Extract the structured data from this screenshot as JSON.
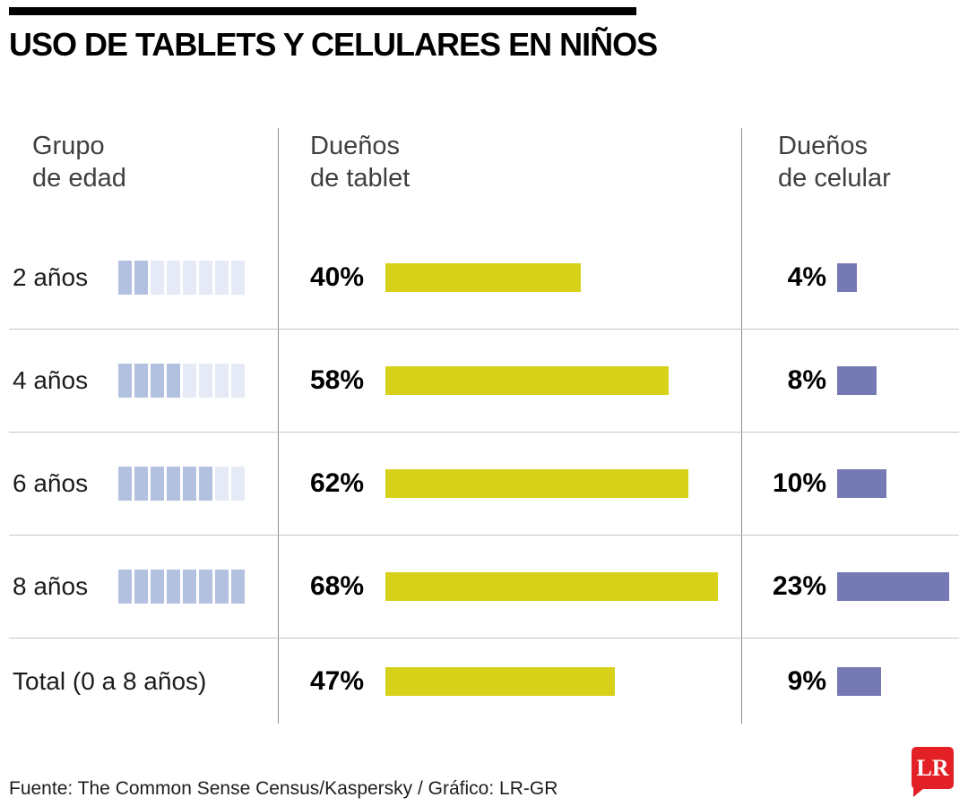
{
  "title": "USO DE TABLETS Y CELULARES EN NIÑOS",
  "columns": {
    "age": "Grupo\nde edad",
    "tablet": "Dueños\nde tablet",
    "phone": "Dueños\nde celular"
  },
  "rows": [
    {
      "label": "2 años",
      "squares": 2,
      "tablet_label": "40%",
      "tablet_value": 40,
      "phone_label": "4%",
      "phone_value": 4
    },
    {
      "label": "4 años",
      "squares": 4,
      "tablet_label": "58%",
      "tablet_value": 58,
      "phone_label": "8%",
      "phone_value": 8
    },
    {
      "label": "6 años",
      "squares": 6,
      "tablet_label": "62%",
      "tablet_value": 62,
      "phone_label": "10%",
      "phone_value": 10
    },
    {
      "label": "8 años",
      "squares": 8,
      "tablet_label": "68%",
      "tablet_value": 68,
      "phone_label": "23%",
      "phone_value": 23
    },
    {
      "label": "Total (0 a 8 años)",
      "tablet_label": "47%",
      "tablet_value": 47,
      "phone_label": "9%",
      "phone_value": 9
    }
  ],
  "chart_data": {
    "type": "bar",
    "orientation": "horizontal",
    "title": "USO DE TABLETS Y CELULARES EN NIÑOS",
    "categories": [
      "2 años",
      "4 años",
      "6 años",
      "8 años",
      "Total (0 a 8 años)"
    ],
    "series": [
      {
        "name": "Dueños de tablet",
        "values": [
          40,
          58,
          62,
          68,
          47
        ],
        "unit": "%",
        "color": "#d7d219"
      },
      {
        "name": "Dueños de celular",
        "values": [
          4,
          8,
          10,
          23,
          9
        ],
        "unit": "%",
        "color": "#757ab4"
      }
    ],
    "value_labels": true,
    "xlim": [
      0,
      100
    ],
    "legend_position": "column-headers",
    "grid": false,
    "source": "Fuente: The Common Sense Census/Kaspersky / Gráfico: LR-GR"
  },
  "colors": {
    "tablet_bar": "#d7d219",
    "phone_bar": "#757ab4",
    "square_filled": "#b3c1e1",
    "square_empty": "#e5eaf6",
    "logo_red": "#e32026"
  },
  "footer": {
    "source": "Fuente: The Common Sense Census/Kaspersky / Gráfico: LR-GR",
    "logo_text": "LR"
  }
}
